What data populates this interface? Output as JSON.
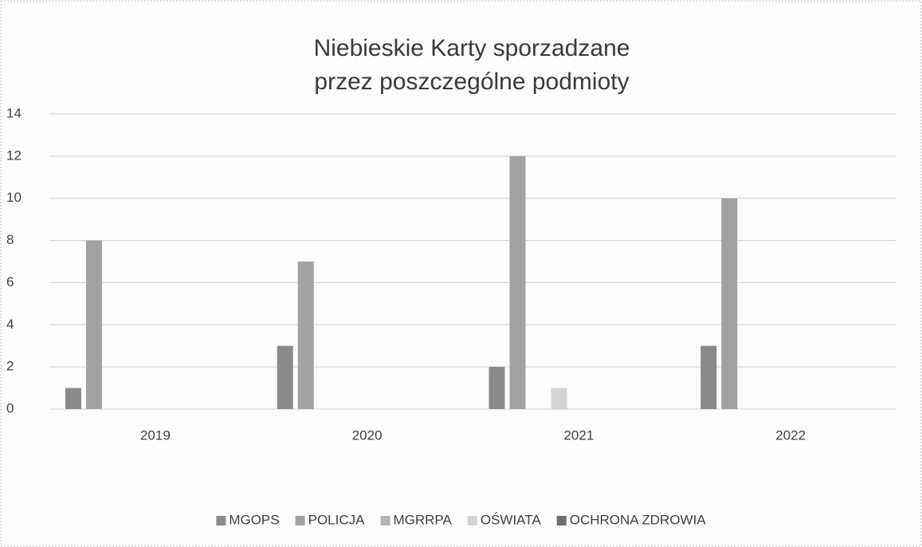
{
  "chart_data": {
    "type": "bar",
    "title": [
      "Niebieskie Karty sporzadzane",
      "przez poszczególne podmioty"
    ],
    "categories": [
      "2019",
      "2020",
      "2021",
      "2022"
    ],
    "series": [
      {
        "name": "MGOPS",
        "color": "#8a8a8a",
        "values": [
          1,
          3,
          2,
          3
        ]
      },
      {
        "name": "POLICJA",
        "color": "#a2a2a2",
        "values": [
          8,
          7,
          12,
          10
        ]
      },
      {
        "name": "MGRRPA",
        "color": "#b4b4b4",
        "values": [
          0,
          0,
          0,
          0
        ]
      },
      {
        "name": "OŚWIATA",
        "color": "#d4d4d4",
        "values": [
          0,
          0,
          1,
          0
        ]
      },
      {
        "name": "OCHRONA ZDROWIA",
        "color": "#6e6e6e",
        "values": [
          0,
          0,
          0,
          0
        ]
      }
    ],
    "ylim": [
      0,
      14
    ],
    "yticks": [
      0,
      2,
      4,
      6,
      8,
      10,
      12,
      14
    ],
    "grid": true,
    "legend": "bottom"
  }
}
